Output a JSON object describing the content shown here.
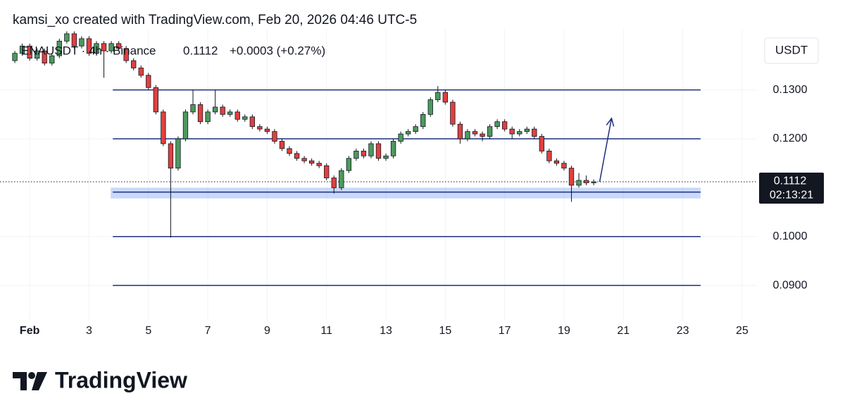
{
  "chart_data": {
    "type": "candlestick",
    "attribution": "kamsi_xo created with TradingView.com, Feb 20, 2026 04:46 UTC-5",
    "symbol": "ENAUSDT · 4h · Binance",
    "change": "+0.0003 (+0.27%)",
    "currency": "USDT",
    "last_price": 0.1112,
    "countdown": "02:13:21",
    "branding": "TradingView",
    "up_color": "#4c9a5e",
    "down_color": "#e0403f",
    "line_color": "#1c2f7a",
    "zone_color": "#2962ff",
    "xlim": [
      0,
      25.5
    ],
    "xticks": [
      {
        "value": 1,
        "label": "Feb"
      },
      3,
      5,
      7,
      9,
      11,
      13,
      15,
      17,
      19,
      21,
      23,
      25
    ],
    "ylim": [
      0.0828,
      0.1425
    ],
    "yticks": [
      {
        "value": 0.09,
        "label": "0.0900"
      },
      {
        "value": 0.1,
        "label": "0.1000"
      },
      {
        "value": 0.12,
        "label": "0.1200"
      },
      {
        "value": 0.13,
        "label": "0.1300"
      }
    ],
    "grid": true,
    "x": [
      0.5,
      0.75,
      1,
      1.25,
      1.5,
      1.75,
      2,
      2.25,
      2.5,
      2.75,
      3,
      3.25,
      3.5,
      3.75,
      4,
      4.25,
      4.5,
      4.75,
      5,
      5.25,
      5.5,
      5.75,
      6,
      6.25,
      6.5,
      6.75,
      7,
      7.25,
      7.5,
      7.75,
      8,
      8.25,
      8.5,
      8.75,
      9,
      9.25,
      9.5,
      9.75,
      10,
      10.25,
      10.5,
      10.75,
      11,
      11.25,
      11.5,
      11.75,
      12,
      12.25,
      12.5,
      12.75,
      13,
      13.25,
      13.5,
      13.75,
      14,
      14.25,
      14.5,
      14.75,
      15,
      15.25,
      15.5,
      15.75,
      16,
      16.25,
      16.5,
      16.75,
      17,
      17.25,
      17.5,
      17.75,
      18,
      18.25,
      18.5,
      18.75,
      19,
      19.25,
      19.5,
      19.75,
      20
    ],
    "open": [
      0.136,
      0.1375,
      0.139,
      0.1365,
      0.138,
      0.1355,
      0.137,
      0.14,
      0.1415,
      0.139,
      0.1405,
      0.1375,
      0.1395,
      0.138,
      0.1395,
      0.1385,
      0.136,
      0.1345,
      0.133,
      0.1305,
      0.1255,
      0.119,
      0.114,
      0.12,
      0.1255,
      0.127,
      0.1235,
      0.1255,
      0.1265,
      0.125,
      0.1255,
      0.124,
      0.1245,
      0.1225,
      0.122,
      0.1215,
      0.1195,
      0.118,
      0.117,
      0.116,
      0.1155,
      0.115,
      0.1145,
      0.112,
      0.11,
      0.1135,
      0.116,
      0.1175,
      0.1165,
      0.119,
      0.116,
      0.1165,
      0.1195,
      0.121,
      0.1215,
      0.1225,
      0.125,
      0.128,
      0.1295,
      0.1275,
      0.123,
      0.12,
      0.1215,
      0.121,
      0.1205,
      0.1225,
      0.1235,
      0.122,
      0.121,
      0.1215,
      0.122,
      0.1205,
      0.1175,
      0.1155,
      0.115,
      0.114,
      0.1105,
      0.1115,
      0.111
    ],
    "high": [
      0.138,
      0.1395,
      0.1395,
      0.1385,
      0.1385,
      0.1375,
      0.1405,
      0.142,
      0.142,
      0.141,
      0.141,
      0.14,
      0.14,
      0.14,
      0.14,
      0.139,
      0.1365,
      0.135,
      0.1335,
      0.131,
      0.126,
      0.1195,
      0.1205,
      0.126,
      0.13,
      0.1275,
      0.126,
      0.13,
      0.127,
      0.126,
      0.126,
      0.125,
      0.125,
      0.123,
      0.1225,
      0.122,
      0.12,
      0.1185,
      0.1175,
      0.1165,
      0.116,
      0.1155,
      0.115,
      0.1125,
      0.114,
      0.1165,
      0.118,
      0.118,
      0.1195,
      0.1195,
      0.117,
      0.12,
      0.1215,
      0.122,
      0.123,
      0.1255,
      0.1285,
      0.1308,
      0.13,
      0.128,
      0.1235,
      0.122,
      0.122,
      0.1215,
      0.123,
      0.124,
      0.124,
      0.1225,
      0.122,
      0.1225,
      0.1225,
      0.121,
      0.118,
      0.116,
      0.1155,
      0.1145,
      0.113,
      0.1125,
      0.1117
    ],
    "low": [
      0.1355,
      0.137,
      0.136,
      0.136,
      0.135,
      0.135,
      0.1365,
      0.1395,
      0.1385,
      0.1385,
      0.137,
      0.137,
      0.1325,
      0.1375,
      0.138,
      0.1355,
      0.134,
      0.1325,
      0.13,
      0.125,
      0.1185,
      0.0998,
      0.1135,
      0.1195,
      0.125,
      0.123,
      0.123,
      0.125,
      0.1245,
      0.1245,
      0.1235,
      0.1235,
      0.122,
      0.1215,
      0.121,
      0.119,
      0.1175,
      0.1165,
      0.1155,
      0.115,
      0.1145,
      0.114,
      0.1115,
      0.1088,
      0.1095,
      0.113,
      0.1155,
      0.116,
      0.116,
      0.1155,
      0.1155,
      0.116,
      0.119,
      0.1205,
      0.121,
      0.122,
      0.1245,
      0.1275,
      0.127,
      0.1225,
      0.119,
      0.1195,
      0.1205,
      0.1195,
      0.12,
      0.122,
      0.1215,
      0.12,
      0.1205,
      0.121,
      0.12,
      0.117,
      0.115,
      0.1145,
      0.1135,
      0.1071,
      0.11,
      0.1105,
      0.1105
    ],
    "close": [
      0.1375,
      0.139,
      0.1365,
      0.138,
      0.1355,
      0.137,
      0.14,
      0.1415,
      0.139,
      0.1405,
      0.1375,
      0.1395,
      0.138,
      0.1395,
      0.1385,
      0.136,
      0.1345,
      0.133,
      0.1305,
      0.1255,
      0.119,
      0.114,
      0.12,
      0.1255,
      0.127,
      0.1235,
      0.1255,
      0.1265,
      0.125,
      0.1255,
      0.124,
      0.1245,
      0.1225,
      0.122,
      0.1215,
      0.1195,
      0.118,
      0.117,
      0.116,
      0.1155,
      0.115,
      0.1145,
      0.112,
      0.11,
      0.1135,
      0.116,
      0.1175,
      0.1165,
      0.119,
      0.116,
      0.1165,
      0.1195,
      0.121,
      0.1215,
      0.1225,
      0.125,
      0.128,
      0.1295,
      0.1275,
      0.123,
      0.12,
      0.1215,
      0.121,
      0.1205,
      0.1225,
      0.1235,
      0.122,
      0.121,
      0.1215,
      0.122,
      0.1205,
      0.1175,
      0.1155,
      0.115,
      0.114,
      0.1105,
      0.1115,
      0.111,
      0.1112
    ],
    "levels": [
      0.13,
      0.12,
      0.1,
      0.09
    ],
    "levels_span": [
      3.8,
      23.6
    ],
    "zone": [
      0.1078,
      0.11
    ],
    "zone_line": 0.1091,
    "arrow": {
      "x": [
        20.2,
        20.6
      ],
      "y": [
        0.1112,
        0.1242
      ]
    }
  }
}
